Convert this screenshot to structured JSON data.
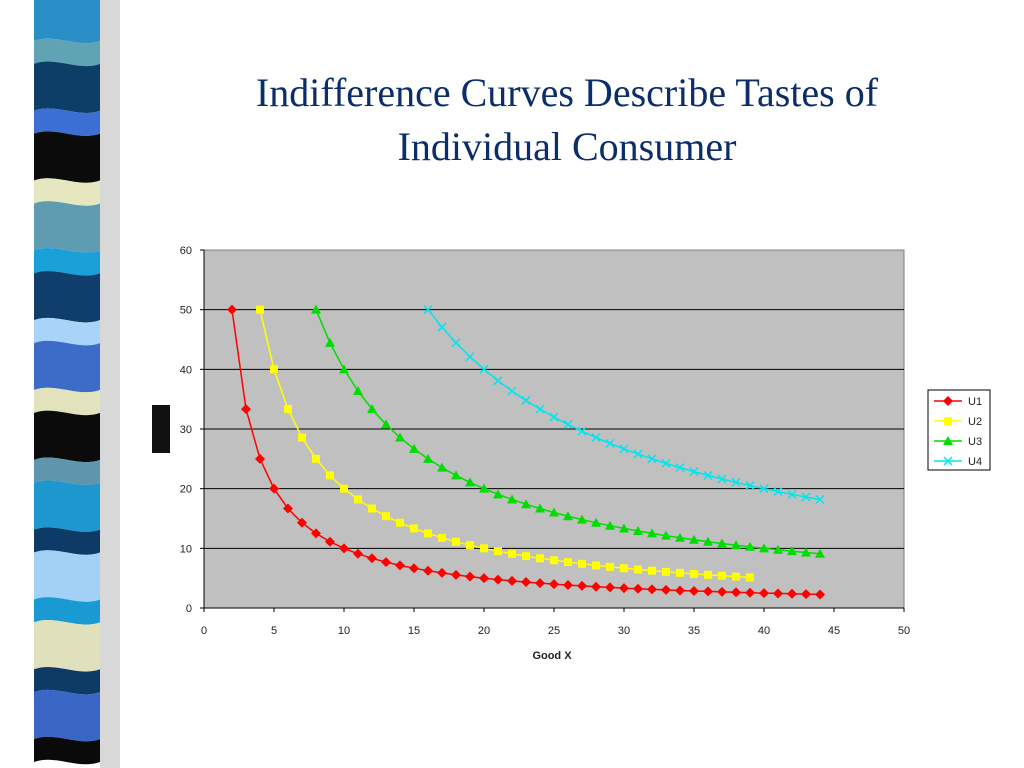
{
  "slide": {
    "title_line1": "Indifference Curves Describe Tastes of",
    "title_line2": "Individual Consumer",
    "strip_colors": [
      "#2a8fc6",
      "#5fa3b5",
      "#0d3e68",
      "#3b6fd3",
      "#0b0b0b",
      "#e6e6c0",
      "#5f9bb1",
      "#1aa0d8",
      "#0f3e6c",
      "#a7d4f8",
      "#3c6bc8",
      "#e2e2bd",
      "#0b0b0b",
      "#5d96ad",
      "#1e97cf",
      "#0d3a66",
      "#a3d0f5",
      "#1a9ad2",
      "#e0e0bc",
      "#0e3a68",
      "#3a67c6",
      "#0a0a0a"
    ]
  },
  "chart_data": {
    "type": "line",
    "title": "",
    "xlabel": "Good X",
    "ylabel": "",
    "xlim": [
      0,
      50
    ],
    "ylim": [
      0,
      60
    ],
    "xticks": [
      0,
      5,
      10,
      15,
      20,
      25,
      30,
      35,
      40,
      45,
      50
    ],
    "yticks": [
      0,
      10,
      20,
      30,
      40,
      50,
      60
    ],
    "grid": "horizontal",
    "plot_background": "#c0c0c0",
    "legend_position": "right",
    "series": [
      {
        "name": "U1",
        "marker": "diamond",
        "color": "#ff0000",
        "k": 100,
        "x_start": 2,
        "x_end": 44,
        "step": 1
      },
      {
        "name": "U2",
        "marker": "square",
        "color": "#ffff00",
        "k": 200,
        "x_start": 4,
        "x_end": 39,
        "step": 1
      },
      {
        "name": "U3",
        "marker": "triangle",
        "color": "#00dd00",
        "k": 400,
        "x_start": 8,
        "x_end": 44,
        "step": 1
      },
      {
        "name": "U4",
        "marker": "x",
        "color": "#00e5ee",
        "k": 800,
        "x_start": 16,
        "x_end": 44,
        "step": 1
      }
    ],
    "curve_note": "y = k / x"
  }
}
